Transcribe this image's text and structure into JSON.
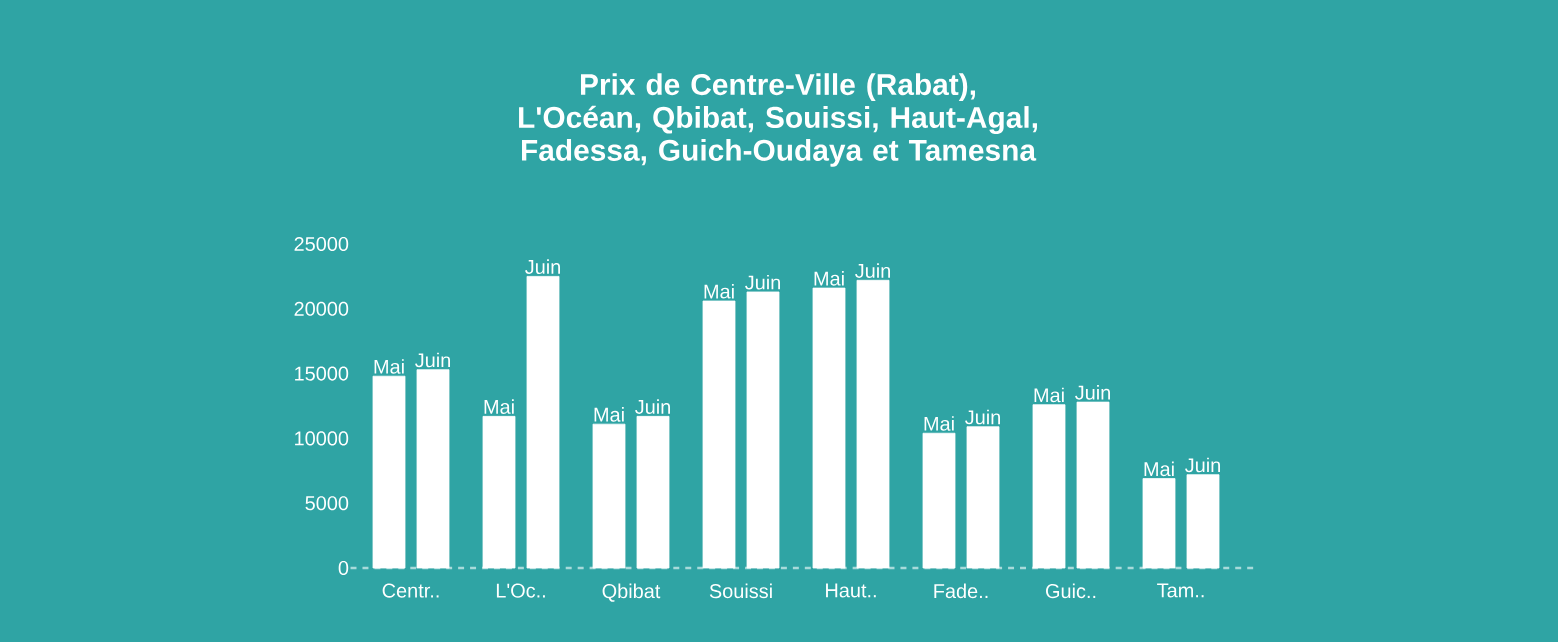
{
  "chart_data": {
    "type": "bar",
    "title": "Prix de Centre-Ville (Rabat), L'Océan, Qbibat, Souissi, Haut-Agal, Fadessa, Guich-Oudaya et Tamesna",
    "categories": [
      "Centr..",
      "L'Oc..",
      "Qbibat",
      "Souissi",
      "Haut..",
      "Fade..",
      "Guic..",
      "Tam.."
    ],
    "series": [
      {
        "name": "Mai",
        "color": "#ffffff",
        "values": [
          14800,
          11700,
          11100,
          20600,
          21600,
          10400,
          12600,
          6900
        ]
      },
      {
        "name": "Juin",
        "color": "#ffffff",
        "values": [
          15300,
          22500,
          11700,
          21300,
          22200,
          10900,
          12800,
          7200
        ]
      }
    ],
    "ylim": [
      0,
      25000
    ],
    "yticks": [
      0,
      5000,
      10000,
      15000,
      20000,
      25000
    ],
    "grid": false
  }
}
